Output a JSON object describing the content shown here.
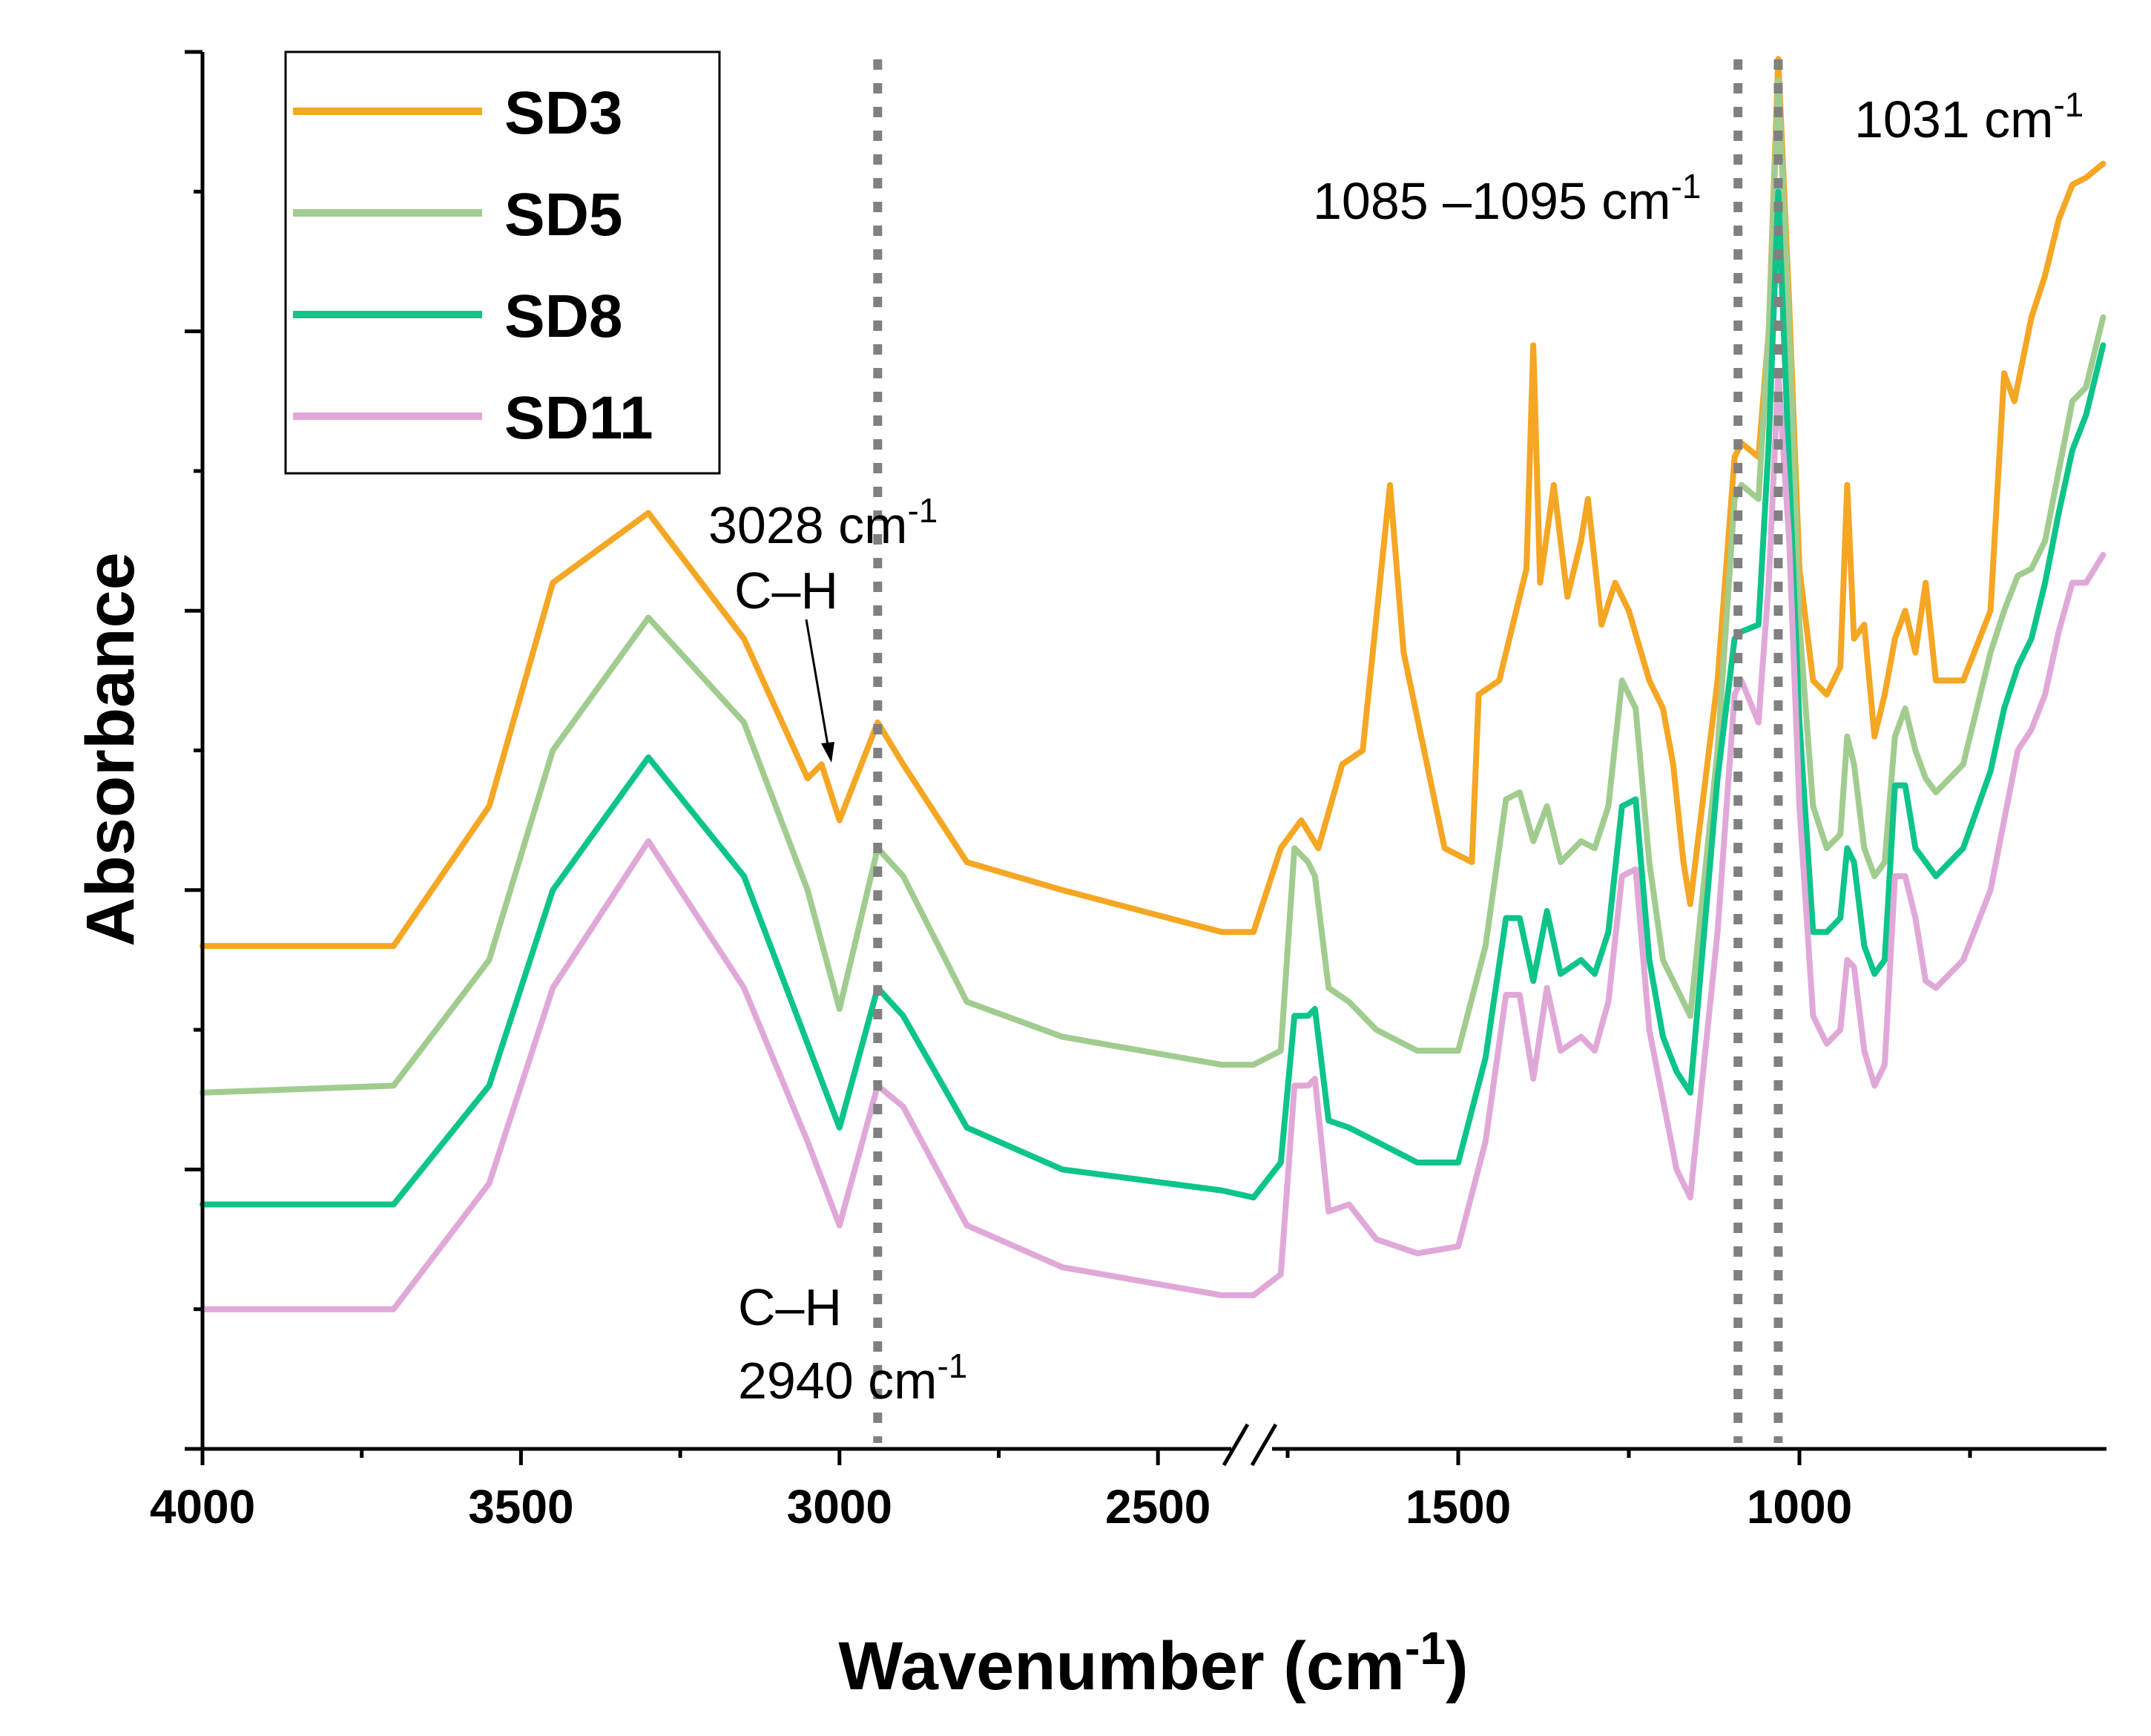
{
  "chart_data": {
    "type": "line",
    "xlabel": "Wavenumber (cm",
    "xlabel_sup": "-1",
    "xlabel_close": ")",
    "ylabel": "Absorbance",
    "x_ticks": [
      4000,
      3500,
      3000,
      2500,
      1500,
      1000
    ],
    "axis_break": {
      "from": 2350,
      "to": 1800
    },
    "xlim": [
      4000,
      550
    ],
    "ylim": [
      0,
      10
    ],
    "legend": {
      "position": "top-left"
    },
    "series": [
      {
        "name": "SD3",
        "color": "#F5A623",
        "points": [
          [
            4000,
            3.6
          ],
          [
            3700,
            3.6
          ],
          [
            3550,
            4.6
          ],
          [
            3450,
            6.2
          ],
          [
            3300,
            6.7
          ],
          [
            3150,
            5.8
          ],
          [
            3050,
            4.8
          ],
          [
            3028,
            4.9
          ],
          [
            3000,
            4.5
          ],
          [
            2940,
            5.2
          ],
          [
            2900,
            4.9
          ],
          [
            2800,
            4.2
          ],
          [
            2650,
            4.0
          ],
          [
            2400,
            3.7
          ],
          [
            2350,
            3.7
          ],
          [
            1800,
            3.7
          ],
          [
            1760,
            4.3
          ],
          [
            1730,
            4.5
          ],
          [
            1705,
            4.3
          ],
          [
            1670,
            4.9
          ],
          [
            1640,
            5.0
          ],
          [
            1600,
            6.9
          ],
          [
            1580,
            5.7
          ],
          [
            1520,
            4.3
          ],
          [
            1480,
            4.2
          ],
          [
            1470,
            5.4
          ],
          [
            1440,
            5.5
          ],
          [
            1420,
            5.9
          ],
          [
            1400,
            6.3
          ],
          [
            1390,
            7.9
          ],
          [
            1380,
            6.2
          ],
          [
            1360,
            6.9
          ],
          [
            1340,
            6.1
          ],
          [
            1320,
            6.5
          ],
          [
            1310,
            6.8
          ],
          [
            1290,
            5.9
          ],
          [
            1270,
            6.2
          ],
          [
            1250,
            6.0
          ],
          [
            1220,
            5.5
          ],
          [
            1200,
            5.3
          ],
          [
            1185,
            4.9
          ],
          [
            1170,
            4.2
          ],
          [
            1160,
            3.9
          ],
          [
            1120,
            5.5
          ],
          [
            1095,
            7.1
          ],
          [
            1085,
            7.2
          ],
          [
            1060,
            7.1
          ],
          [
            1045,
            8.0
          ],
          [
            1031,
            9.95
          ],
          [
            1015,
            8.2
          ],
          [
            1000,
            6.3
          ],
          [
            980,
            5.5
          ],
          [
            960,
            5.4
          ],
          [
            940,
            5.6
          ],
          [
            930,
            6.9
          ],
          [
            920,
            5.8
          ],
          [
            905,
            5.9
          ],
          [
            890,
            5.1
          ],
          [
            875,
            5.4
          ],
          [
            860,
            5.8
          ],
          [
            845,
            6.0
          ],
          [
            830,
            5.7
          ],
          [
            815,
            6.2
          ],
          [
            800,
            5.5
          ],
          [
            760,
            5.5
          ],
          [
            720,
            6.0
          ],
          [
            700,
            7.7
          ],
          [
            685,
            7.5
          ],
          [
            660,
            8.1
          ],
          [
            640,
            8.4
          ],
          [
            620,
            8.8
          ],
          [
            600,
            9.05
          ],
          [
            580,
            9.1
          ],
          [
            555,
            9.2
          ]
        ]
      },
      {
        "name": "SD5",
        "color": "#A1CC8F",
        "points": [
          [
            4000,
            2.55
          ],
          [
            3700,
            2.6
          ],
          [
            3550,
            3.5
          ],
          [
            3450,
            5.0
          ],
          [
            3300,
            5.95
          ],
          [
            3150,
            5.2
          ],
          [
            3050,
            4.0
          ],
          [
            3000,
            3.15
          ],
          [
            2940,
            4.3
          ],
          [
            2900,
            4.1
          ],
          [
            2800,
            3.2
          ],
          [
            2650,
            2.95
          ],
          [
            2400,
            2.75
          ],
          [
            2350,
            2.75
          ],
          [
            1800,
            2.75
          ],
          [
            1760,
            2.85
          ],
          [
            1740,
            4.3
          ],
          [
            1720,
            4.2
          ],
          [
            1710,
            4.1
          ],
          [
            1690,
            3.3
          ],
          [
            1660,
            3.2
          ],
          [
            1620,
            3.0
          ],
          [
            1560,
            2.85
          ],
          [
            1500,
            2.85
          ],
          [
            1460,
            3.6
          ],
          [
            1430,
            4.65
          ],
          [
            1410,
            4.7
          ],
          [
            1390,
            4.35
          ],
          [
            1370,
            4.6
          ],
          [
            1350,
            4.2
          ],
          [
            1320,
            4.35
          ],
          [
            1300,
            4.3
          ],
          [
            1280,
            4.6
          ],
          [
            1260,
            5.5
          ],
          [
            1240,
            5.3
          ],
          [
            1220,
            4.2
          ],
          [
            1200,
            3.5
          ],
          [
            1180,
            3.3
          ],
          [
            1160,
            3.1
          ],
          [
            1120,
            5.0
          ],
          [
            1095,
            6.8
          ],
          [
            1085,
            6.9
          ],
          [
            1060,
            6.8
          ],
          [
            1045,
            8.0
          ],
          [
            1031,
            9.8
          ],
          [
            1015,
            8.0
          ],
          [
            1000,
            5.9
          ],
          [
            980,
            4.6
          ],
          [
            960,
            4.3
          ],
          [
            940,
            4.4
          ],
          [
            930,
            5.1
          ],
          [
            920,
            4.9
          ],
          [
            905,
            4.3
          ],
          [
            890,
            4.1
          ],
          [
            875,
            4.2
          ],
          [
            860,
            5.1
          ],
          [
            845,
            5.3
          ],
          [
            830,
            5.0
          ],
          [
            815,
            4.8
          ],
          [
            800,
            4.7
          ],
          [
            760,
            4.9
          ],
          [
            720,
            5.7
          ],
          [
            700,
            6.0
          ],
          [
            680,
            6.25
          ],
          [
            660,
            6.3
          ],
          [
            640,
            6.5
          ],
          [
            620,
            7.0
          ],
          [
            600,
            7.5
          ],
          [
            580,
            7.6
          ],
          [
            555,
            8.1
          ]
        ]
      },
      {
        "name": "SD8",
        "color": "#0DC48A",
        "points": [
          [
            4000,
            1.75
          ],
          [
            3700,
            1.75
          ],
          [
            3550,
            2.6
          ],
          [
            3450,
            4.0
          ],
          [
            3300,
            4.95
          ],
          [
            3150,
            4.1
          ],
          [
            3050,
            2.9
          ],
          [
            3000,
            2.3
          ],
          [
            2940,
            3.3
          ],
          [
            2900,
            3.1
          ],
          [
            2800,
            2.3
          ],
          [
            2650,
            2.0
          ],
          [
            2400,
            1.85
          ],
          [
            2350,
            1.8
          ],
          [
            1800,
            1.8
          ],
          [
            1760,
            2.05
          ],
          [
            1740,
            3.1
          ],
          [
            1720,
            3.1
          ],
          [
            1710,
            3.15
          ],
          [
            1690,
            2.35
          ],
          [
            1660,
            2.3
          ],
          [
            1620,
            2.2
          ],
          [
            1560,
            2.05
          ],
          [
            1500,
            2.05
          ],
          [
            1460,
            2.8
          ],
          [
            1430,
            3.8
          ],
          [
            1410,
            3.8
          ],
          [
            1390,
            3.35
          ],
          [
            1370,
            3.85
          ],
          [
            1350,
            3.4
          ],
          [
            1320,
            3.5
          ],
          [
            1300,
            3.4
          ],
          [
            1280,
            3.7
          ],
          [
            1260,
            4.6
          ],
          [
            1240,
            4.65
          ],
          [
            1220,
            3.5
          ],
          [
            1200,
            2.95
          ],
          [
            1180,
            2.7
          ],
          [
            1160,
            2.55
          ],
          [
            1120,
            4.8
          ],
          [
            1095,
            5.8
          ],
          [
            1085,
            5.85
          ],
          [
            1060,
            5.9
          ],
          [
            1045,
            7.2
          ],
          [
            1031,
            9.0
          ],
          [
            1015,
            7.0
          ],
          [
            1000,
            5.2
          ],
          [
            980,
            3.7
          ],
          [
            960,
            3.7
          ],
          [
            940,
            3.8
          ],
          [
            930,
            4.3
          ],
          [
            920,
            4.2
          ],
          [
            905,
            3.6
          ],
          [
            890,
            3.4
          ],
          [
            875,
            3.5
          ],
          [
            860,
            4.75
          ],
          [
            845,
            4.75
          ],
          [
            830,
            4.3
          ],
          [
            815,
            4.2
          ],
          [
            800,
            4.1
          ],
          [
            760,
            4.3
          ],
          [
            720,
            4.85
          ],
          [
            700,
            5.3
          ],
          [
            680,
            5.6
          ],
          [
            660,
            5.8
          ],
          [
            640,
            6.2
          ],
          [
            620,
            6.7
          ],
          [
            600,
            7.15
          ],
          [
            580,
            7.4
          ],
          [
            555,
            7.9
          ]
        ]
      },
      {
        "name": "SD11",
        "color": "#E0A8D8",
        "points": [
          [
            4000,
            1.0
          ],
          [
            3700,
            1.0
          ],
          [
            3550,
            1.9
          ],
          [
            3450,
            3.3
          ],
          [
            3300,
            4.35
          ],
          [
            3150,
            3.3
          ],
          [
            3050,
            2.2
          ],
          [
            3000,
            1.6
          ],
          [
            2940,
            2.6
          ],
          [
            2900,
            2.45
          ],
          [
            2800,
            1.6
          ],
          [
            2650,
            1.3
          ],
          [
            2400,
            1.1
          ],
          [
            2350,
            1.1
          ],
          [
            1800,
            1.1
          ],
          [
            1760,
            1.25
          ],
          [
            1740,
            2.6
          ],
          [
            1720,
            2.6
          ],
          [
            1710,
            2.65
          ],
          [
            1690,
            1.7
          ],
          [
            1660,
            1.75
          ],
          [
            1620,
            1.5
          ],
          [
            1560,
            1.4
          ],
          [
            1500,
            1.45
          ],
          [
            1460,
            2.2
          ],
          [
            1430,
            3.25
          ],
          [
            1410,
            3.25
          ],
          [
            1390,
            2.65
          ],
          [
            1370,
            3.3
          ],
          [
            1350,
            2.85
          ],
          [
            1320,
            2.95
          ],
          [
            1300,
            2.85
          ],
          [
            1280,
            3.2
          ],
          [
            1260,
            4.1
          ],
          [
            1240,
            4.15
          ],
          [
            1220,
            3.0
          ],
          [
            1200,
            2.5
          ],
          [
            1180,
            2.0
          ],
          [
            1160,
            1.8
          ],
          [
            1120,
            3.7
          ],
          [
            1095,
            5.4
          ],
          [
            1085,
            5.5
          ],
          [
            1060,
            5.2
          ],
          [
            1045,
            6.2
          ],
          [
            1031,
            7.7
          ],
          [
            1015,
            6.5
          ],
          [
            1000,
            4.6
          ],
          [
            980,
            3.1
          ],
          [
            960,
            2.9
          ],
          [
            940,
            3.0
          ],
          [
            930,
            3.5
          ],
          [
            920,
            3.45
          ],
          [
            905,
            2.85
          ],
          [
            890,
            2.6
          ],
          [
            875,
            2.75
          ],
          [
            860,
            4.1
          ],
          [
            845,
            4.1
          ],
          [
            830,
            3.8
          ],
          [
            815,
            3.35
          ],
          [
            800,
            3.3
          ],
          [
            760,
            3.5
          ],
          [
            720,
            4.0
          ],
          [
            700,
            4.5
          ],
          [
            680,
            5.0
          ],
          [
            660,
            5.15
          ],
          [
            640,
            5.4
          ],
          [
            620,
            5.85
          ],
          [
            600,
            6.2
          ],
          [
            580,
            6.2
          ],
          [
            555,
            6.4
          ]
        ]
      }
    ],
    "markers": [
      2940,
      1090,
      1031
    ],
    "annotations": [
      {
        "text": "3028 cm",
        "sup": "-1",
        "line2": "C–H",
        "x": 3028
      },
      {
        "text": "C–H",
        "line2": "2940 cm",
        "sup": "-1",
        "x": 2940
      },
      {
        "text": "1085 –1095 cm",
        "sup": "-1",
        "x": 1090
      },
      {
        "text": "1031 cm",
        "sup": "-1",
        "x": 1031
      }
    ]
  }
}
